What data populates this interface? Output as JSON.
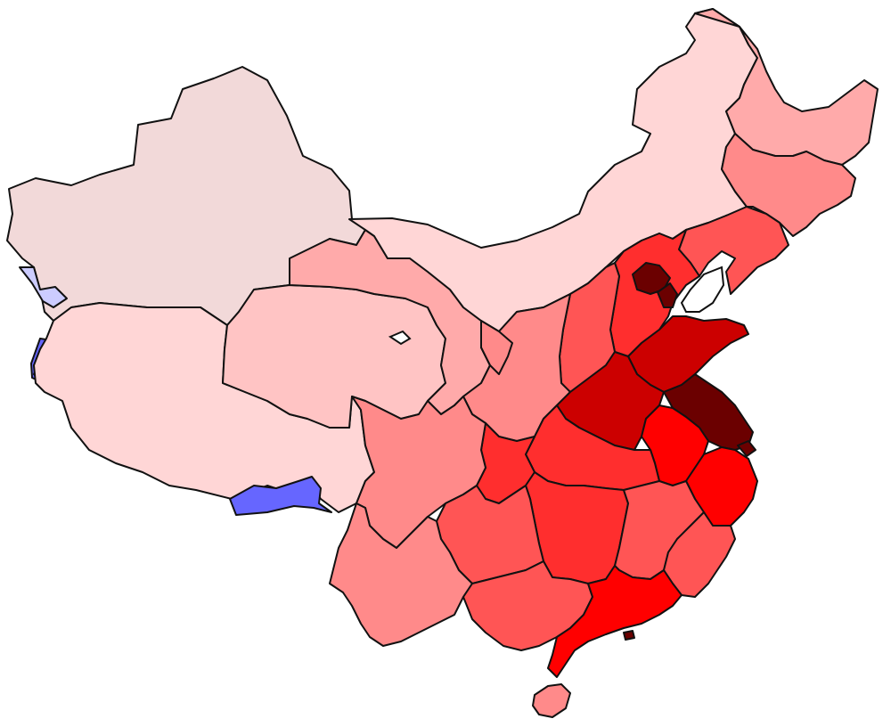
{
  "map": {
    "type": "choropleth",
    "title": "",
    "legend": null,
    "palette": {
      "lightest_red": "#f2d9d9",
      "very_light_red": "#ffd6d6",
      "light_red": "#ffc4c4",
      "pale_red": "#ffaaaa",
      "medium_red": "#ff8a8a",
      "red": "#ff5555",
      "strong_red": "#ff2e2e",
      "bright_red": "#ff0000",
      "deep_red": "#cc0000",
      "darkest_red": "#6b0000",
      "light_blue": "#ccccff",
      "blue": "#6666ff"
    }
  }
}
